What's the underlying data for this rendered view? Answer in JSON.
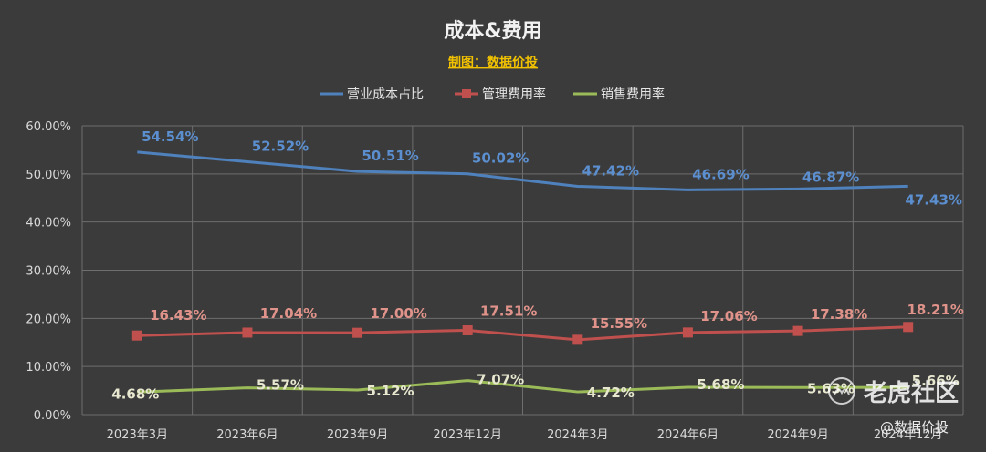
{
  "chart_data": {
    "type": "line",
    "title": "成本&费用",
    "subtitle": "制图：数据价投",
    "categories": [
      "2023年3月",
      "2023年6月",
      "2023年9月",
      "2023年12月",
      "2024年3月",
      "2024年6月",
      "2024年9月",
      "2024年12月"
    ],
    "ylim": [
      0,
      60
    ],
    "yticks": [
      "0.00%",
      "10.00%",
      "20.00%",
      "30.00%",
      "40.00%",
      "50.00%",
      "60.00%"
    ],
    "legend_position": "top",
    "grid": true,
    "series": [
      {
        "name": "营业成本占比",
        "color": "#4f81bd",
        "label_color": "#5b8fd0",
        "marker": "none",
        "values": [
          54.54,
          52.52,
          50.51,
          50.02,
          47.42,
          46.69,
          46.87,
          47.43
        ],
        "labels": [
          "54.54%",
          "52.52%",
          "50.51%",
          "50.02%",
          "47.42%",
          "46.69%",
          "46.87%",
          "47.43%"
        ]
      },
      {
        "name": "管理费用率",
        "color": "#c0504d",
        "label_color": "#e0938a",
        "marker": "square",
        "values": [
          16.43,
          17.04,
          17.0,
          17.51,
          15.55,
          17.06,
          17.38,
          18.21
        ],
        "labels": [
          "16.43%",
          "17.04%",
          "17.00%",
          "17.51%",
          "15.55%",
          "17.06%",
          "17.38%",
          "18.21%"
        ]
      },
      {
        "name": "销售费用率",
        "color": "#9bbb59",
        "label_color": "#e8e8d0",
        "marker": "none",
        "values": [
          4.68,
          5.57,
          5.12,
          7.07,
          4.72,
          5.68,
          5.63,
          5.66
        ],
        "labels": [
          "4.68%",
          "5.57%",
          "5.12%",
          "7.07%",
          "4.72%",
          "5.68%",
          "5.63%",
          "5.66%"
        ]
      }
    ]
  },
  "watermark": {
    "main": "老虎社区",
    "sub": "@数据价投",
    "icon": "tiger-logo-icon"
  }
}
